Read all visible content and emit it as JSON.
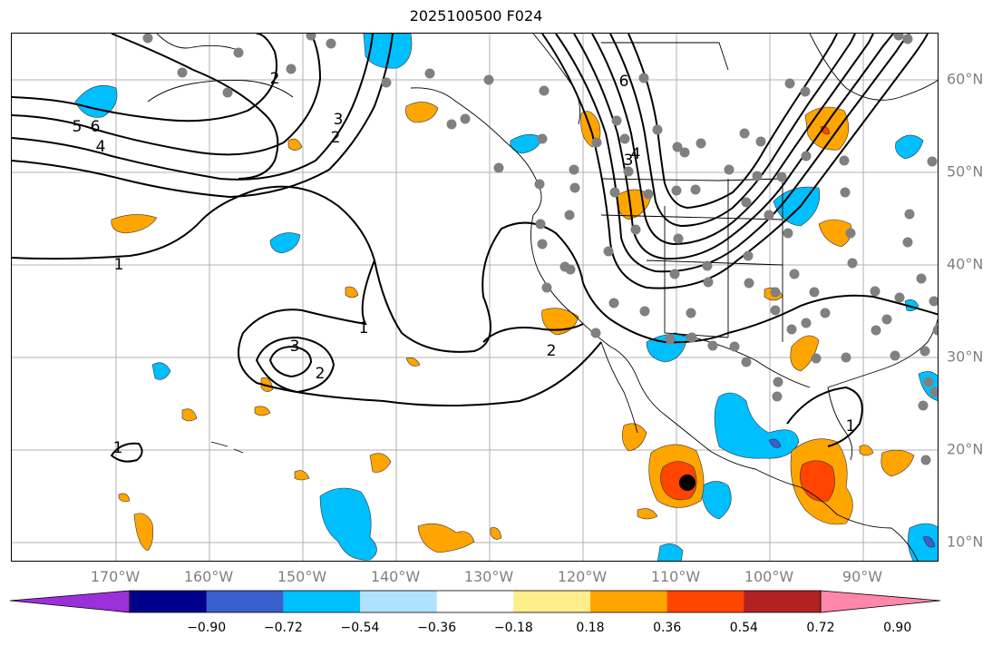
{
  "title": "2025100500 F024",
  "lon_labels": [
    {
      "text": "170°W",
      "lon": -170
    },
    {
      "text": "160°W",
      "lon": -160
    },
    {
      "text": "150°W",
      "lon": -150
    },
    {
      "text": "140°W",
      "lon": -140
    },
    {
      "text": "130°W",
      "lon": -130
    },
    {
      "text": "120°W",
      "lon": -120
    },
    {
      "text": "110°W",
      "lon": -110
    },
    {
      "text": "100°W",
      "lon": -100
    },
    {
      "text": "90°W",
      "lon": -90
    }
  ],
  "lat_labels": [
    {
      "text": "60°N",
      "lat": 60
    },
    {
      "text": "50°N",
      "lat": 50
    },
    {
      "text": "40°N",
      "lat": 40
    },
    {
      "text": "30°N",
      "lat": 30
    },
    {
      "text": "20°N",
      "lat": 20
    },
    {
      "text": "10°N",
      "lat": 10
    }
  ],
  "colorbar": {
    "colors": [
      "#9b30d9",
      "#00008b",
      "#3a5fcd",
      "#00bfff",
      "#b0e2ff",
      "#ffffff",
      "#ffec8b",
      "#ffa500",
      "#ff4500",
      "#b22222",
      "#ff88aa"
    ],
    "ticks": [
      "−0.90",
      "−0.72",
      "−0.54",
      "−0.36",
      "−0.18",
      "0.18",
      "0.36",
      "0.54",
      "0.72",
      "0.90"
    ]
  },
  "contour_labels": [
    "1",
    "1",
    "1",
    "1",
    "2",
    "2",
    "2",
    "2",
    "3",
    "3",
    "3",
    "4",
    "4",
    "5",
    "6",
    "6"
  ],
  "station_color": "#808080",
  "cyclone_marker_color": "#000000"
}
